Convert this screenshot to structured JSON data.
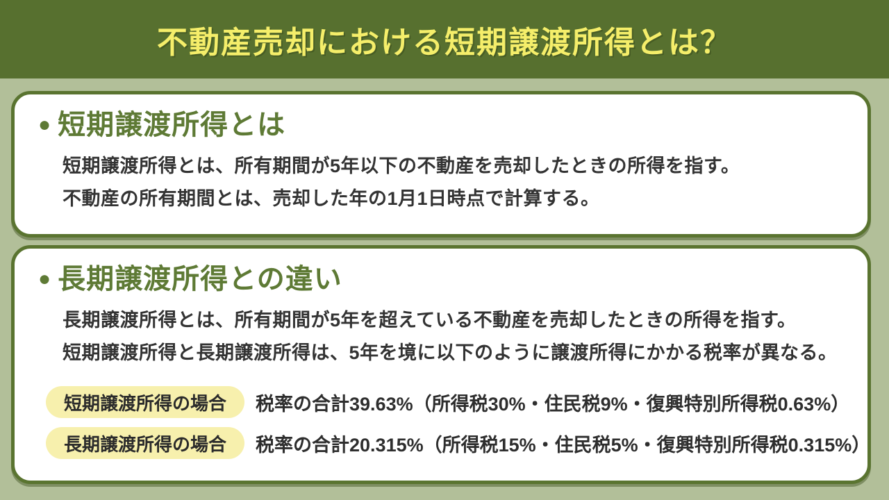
{
  "header": {
    "title": "不動産売却における短期譲渡所得とは？"
  },
  "colors": {
    "header_bg": "#57702f",
    "page_bg": "#b2bf99",
    "title_yellow": "#f5ee6a",
    "card_border": "#5a7430",
    "heading_green": "#5e7a35",
    "pill_bg": "#f7f0ad",
    "body_text": "#333333"
  },
  "sections": [
    {
      "bullet": "●",
      "heading": "短期譲渡所得とは",
      "lines": [
        "短期譲渡所得とは、所有期間が5年以下の不動産を売却したときの所得を指す。",
        "不動産の所有期間とは、売却した年の1月1日時点で計算する。"
      ]
    },
    {
      "bullet": "●",
      "heading": "長期譲渡所得との違い",
      "lines": [
        "長期譲渡所得とは、所有期間が5年を超えている不動産を売却したときの所得を指す。",
        "短期譲渡所得と長期譲渡所得は、5年を境に以下のように譲渡所得にかかる税率が異なる。"
      ],
      "tax_rows": [
        {
          "label": "短期譲渡所得の場合",
          "text": "税率の合計39.63%（所得税30%・住民税9%・復興特別所得税0.63%）"
        },
        {
          "label": "長期譲渡所得の場合",
          "text": "税率の合計20.315%（所得税15%・住民税5%・復興特別所得税0.315%）"
        }
      ]
    }
  ]
}
